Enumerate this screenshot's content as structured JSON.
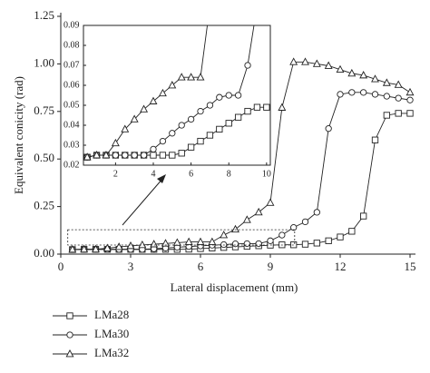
{
  "chart_data": {
    "type": "line",
    "xlabel": "Lateral displacement (mm)",
    "ylabel": "Equivalent conicity (rad)",
    "x": [
      0.5,
      1,
      1.5,
      2,
      2.5,
      3,
      3.5,
      4,
      4.5,
      5,
      5.5,
      6,
      6.5,
      7,
      7.5,
      8,
      8.5,
      9,
      9.5,
      10,
      10.5,
      11,
      11.5,
      12,
      12.5,
      13,
      13.5,
      14,
      14.5,
      15
    ],
    "series": [
      {
        "name": "LMa28",
        "color": "#222222",
        "marker": "square",
        "values": [
          0.024,
          0.025,
          0.025,
          0.025,
          0.025,
          0.025,
          0.025,
          0.025,
          0.025,
          0.025,
          0.026,
          0.029,
          0.032,
          0.035,
          0.038,
          0.041,
          0.044,
          0.047,
          0.049,
          0.049,
          0.052,
          0.058,
          0.07,
          0.09,
          0.12,
          0.2,
          0.6,
          0.73,
          0.74,
          0.74
        ]
      },
      {
        "name": "LMa30",
        "color": "#222222",
        "marker": "circle",
        "values": [
          0.024,
          0.025,
          0.025,
          0.025,
          0.025,
          0.025,
          0.025,
          0.028,
          0.032,
          0.036,
          0.04,
          0.043,
          0.047,
          0.05,
          0.054,
          0.055,
          0.055,
          0.07,
          0.1,
          0.14,
          0.17,
          0.22,
          0.66,
          0.84,
          0.85,
          0.85,
          0.84,
          0.83,
          0.82,
          0.81
        ]
      },
      {
        "name": "LMa32",
        "color": "#222222",
        "marker": "triangle",
        "values": [
          0.024,
          0.025,
          0.025,
          0.031,
          0.038,
          0.043,
          0.048,
          0.052,
          0.056,
          0.06,
          0.064,
          0.064,
          0.064,
          0.1,
          0.13,
          0.18,
          0.22,
          0.27,
          0.77,
          1.01,
          1.01,
          1.0,
          0.99,
          0.97,
          0.95,
          0.94,
          0.92,
          0.9,
          0.89,
          0.85
        ]
      }
    ],
    "xlim": [
      0,
      15
    ],
    "xticks": [
      0,
      3,
      6,
      9,
      12,
      15
    ],
    "ylim": [
      0,
      1.25
    ],
    "yticks": [
      {
        "value": 0,
        "label": "0.00"
      },
      0.25,
      {
        "value": 0.5,
        "label": "0.50"
      },
      0.75,
      {
        "value": 1,
        "label": "1.00"
      },
      1.25
    ],
    "inset": {
      "xlim": [
        0.3,
        10.2
      ],
      "xticks": [
        2,
        4,
        6,
        8,
        10
      ],
      "ylim": [
        0.02,
        0.09
      ],
      "yticks": [
        0.02,
        0.03,
        0.04,
        0.05,
        0.06,
        0.07,
        0.08,
        0.09
      ]
    },
    "legend": "bottom-left"
  }
}
